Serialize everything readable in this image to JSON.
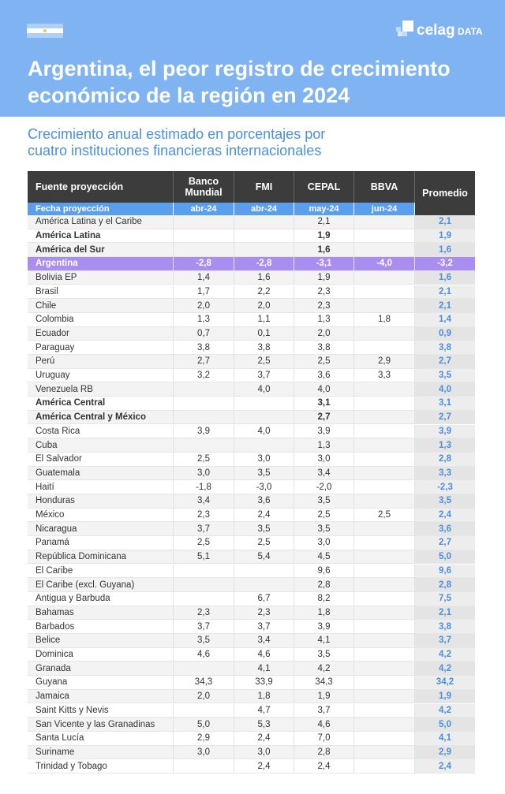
{
  "header": {
    "logo_name": "celag",
    "logo_tag": "DATA",
    "title_lines": [
      "Argentina, el peor registro de crecimiento",
      "económico de la región en 2024"
    ]
  },
  "subtitle_lines": [
    "Crecimiento anual estimado en porcentajes por",
    "cuatro instituciones financieras internacionales"
  ],
  "table": {
    "columns": [
      "Fuente proyección",
      "Banco Mundial",
      "FMI",
      "CEPAL",
      "BBVA",
      "Promedio"
    ],
    "dates": [
      "Fecha proyección",
      "abr-24",
      "abr-24",
      "may-24",
      "jun-24"
    ],
    "bold_rows": [
      1,
      2,
      13,
      14
    ],
    "highlight_rows": [
      3
    ],
    "rows": [
      [
        "América Latina y el Caribe",
        null,
        null,
        "2,1",
        null,
        "2,1"
      ],
      [
        "América Latina",
        null,
        null,
        "1,9",
        null,
        "1,9"
      ],
      [
        "América del Sur",
        null,
        null,
        "1,6",
        null,
        "1,6"
      ],
      [
        "Argentina",
        "-2,8",
        "-2,8",
        "-3,1",
        "-4,0",
        "-3,2"
      ],
      [
        "Bolivia EP",
        "1,4",
        "1,6",
        "1,9",
        null,
        "1,6"
      ],
      [
        "Brasil",
        "1,7",
        "2,2",
        "2,3",
        null,
        "2,1"
      ],
      [
        "Chile",
        "2,0",
        "2,0",
        "2,3",
        null,
        "2,1"
      ],
      [
        "Colombia",
        "1,3",
        "1,1",
        "1,3",
        "1,8",
        "1,4"
      ],
      [
        "Ecuador",
        "0,7",
        "0,1",
        "2,0",
        null,
        "0,9"
      ],
      [
        "Paraguay",
        "3,8",
        "3,8",
        "3,8",
        null,
        "3,8"
      ],
      [
        "Perú",
        "2,7",
        "2,5",
        "2,5",
        "2,9",
        "2,7"
      ],
      [
        "Uruguay",
        "3,2",
        "3,7",
        "3,6",
        "3,3",
        "3,5"
      ],
      [
        "Venezuela RB",
        null,
        "4,0",
        "4,0",
        null,
        "4,0"
      ],
      [
        "América Central",
        null,
        null,
        "3,1",
        null,
        "3,1"
      ],
      [
        "América Central y México",
        null,
        null,
        "2,7",
        null,
        "2,7"
      ],
      [
        "Costa Rica",
        "3,9",
        "4,0",
        "3,9",
        null,
        "3,9"
      ],
      [
        "Cuba",
        null,
        null,
        "1,3",
        null,
        "1,3"
      ],
      [
        "El Salvador",
        "2,5",
        "3,0",
        "3,0",
        null,
        "2,8"
      ],
      [
        "Guatemala",
        "3,0",
        "3,5",
        "3,4",
        null,
        "3,3"
      ],
      [
        "Haití",
        "-1,8",
        "-3,0",
        "-2,0",
        null,
        "-2,3"
      ],
      [
        "Honduras",
        "3,4",
        "3,6",
        "3,5",
        null,
        "3,5"
      ],
      [
        "México",
        "2,3",
        "2,4",
        "2,5",
        "2,5",
        "2,4"
      ],
      [
        "Nicaragua",
        "3,7",
        "3,5",
        "3,5",
        null,
        "3,6"
      ],
      [
        "Panamá",
        "2,5",
        "2,5",
        "3,0",
        null,
        "2,7"
      ],
      [
        "República Dominicana",
        "5,1",
        "5,4",
        "4,5",
        null,
        "5,0"
      ],
      [
        "El Caribe",
        null,
        null,
        "9,6",
        null,
        "9,6"
      ],
      [
        "El Caribe (excl. Guyana)",
        null,
        null,
        "2,8",
        null,
        "2,8"
      ],
      [
        "Antigua y Barbuda",
        null,
        "6,7",
        "8,2",
        null,
        "7,5"
      ],
      [
        "Bahamas",
        "2,3",
        "2,3",
        "1,8",
        null,
        "2,1"
      ],
      [
        "Barbados",
        "3,7",
        "3,7",
        "3,9",
        null,
        "3,8"
      ],
      [
        "Belice",
        "3,5",
        "3,4",
        "4,1",
        null,
        "3,7"
      ],
      [
        "Dominica",
        "4,6",
        "4,6",
        "3,5",
        null,
        "4,2"
      ],
      [
        "Granada",
        null,
        "4,1",
        "4,2",
        null,
        "4,2"
      ],
      [
        "Guyana",
        "34,3",
        "33,9",
        "34,3",
        null,
        "34,2"
      ],
      [
        "Jamaica",
        "2,0",
        "1,8",
        "1,9",
        null,
        "1,9"
      ],
      [
        "Saint Kitts y Nevis",
        null,
        "4,7",
        "3,7",
        null,
        "4,2"
      ],
      [
        "San Vicente y las Granadinas",
        "5,0",
        "5,3",
        "4,6",
        null,
        "5,0"
      ],
      [
        "Santa Lucía",
        "2,9",
        "2,4",
        "7,0",
        null,
        "4,1"
      ],
      [
        "Suriname",
        "3,0",
        "3,0",
        "2,8",
        null,
        "2,9"
      ],
      [
        "Trinidad y Tobago",
        null,
        "2,4",
        "2,4",
        null,
        "2,4"
      ]
    ]
  }
}
